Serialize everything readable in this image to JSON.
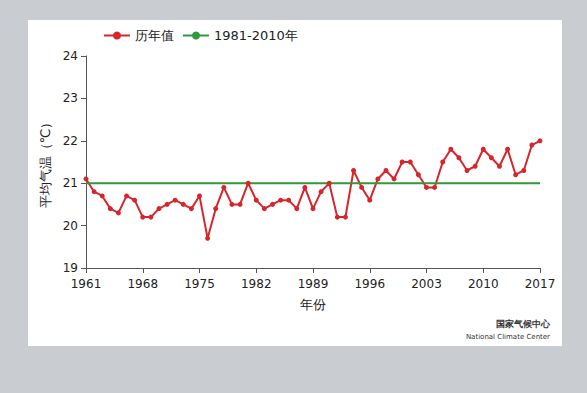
{
  "chart_data": {
    "type": "line",
    "y_label": "平均气温（℃）",
    "x_label": "年份",
    "x": [
      1961,
      1962,
      1963,
      1964,
      1965,
      1966,
      1967,
      1968,
      1969,
      1970,
      1971,
      1972,
      1973,
      1974,
      1975,
      1976,
      1977,
      1978,
      1979,
      1980,
      1981,
      1982,
      1983,
      1984,
      1985,
      1986,
      1987,
      1988,
      1989,
      1990,
      1991,
      1992,
      1993,
      1994,
      1995,
      1996,
      1997,
      1998,
      1999,
      2000,
      2001,
      2002,
      2003,
      2004,
      2005,
      2006,
      2007,
      2008,
      2009,
      2010,
      2011,
      2012,
      2013,
      2014,
      2015,
      2016,
      2017
    ],
    "series": [
      {
        "name": "历年值",
        "color": "#d7262b",
        "marker": "circle",
        "line_style": "solid",
        "values": [
          21.1,
          20.8,
          20.7,
          20.4,
          20.3,
          20.7,
          20.6,
          20.2,
          20.2,
          20.4,
          20.5,
          20.6,
          20.5,
          20.4,
          20.7,
          19.7,
          20.4,
          20.9,
          20.5,
          20.5,
          21.0,
          20.6,
          20.4,
          20.5,
          20.6,
          20.6,
          20.4,
          20.9,
          20.4,
          20.8,
          21.0,
          20.2,
          20.2,
          21.3,
          20.9,
          20.6,
          21.1,
          21.3,
          21.1,
          21.5,
          21.5,
          21.2,
          20.9,
          20.9,
          21.5,
          21.8,
          21.6,
          21.3,
          21.4,
          21.8,
          21.6,
          21.4,
          21.8,
          21.2,
          21.3,
          21.9,
          22.0
        ]
      },
      {
        "name": "1981-2010年",
        "color": "#2e9a3a",
        "marker": "none",
        "line_style": "solid",
        "values": [
          21.0,
          21.0,
          21.0,
          21.0,
          21.0,
          21.0,
          21.0,
          21.0,
          21.0,
          21.0,
          21.0,
          21.0,
          21.0,
          21.0,
          21.0,
          21.0,
          21.0,
          21.0,
          21.0,
          21.0,
          21.0,
          21.0,
          21.0,
          21.0,
          21.0,
          21.0,
          21.0,
          21.0,
          21.0,
          21.0,
          21.0,
          21.0,
          21.0,
          21.0,
          21.0,
          21.0,
          21.0,
          21.0,
          21.0,
          21.0,
          21.0,
          21.0,
          21.0,
          21.0,
          21.0,
          21.0,
          21.0,
          21.0,
          21.0,
          21.0,
          21.0,
          21.0,
          21.0,
          21.0,
          21.0,
          21.0,
          21.0
        ]
      }
    ],
    "xlim": [
      1961,
      2017
    ],
    "xticks": [
      1961,
      1968,
      1975,
      1982,
      1989,
      1996,
      2003,
      2010,
      2017
    ],
    "ylim": [
      19,
      24
    ],
    "yticks": [
      19,
      20,
      21,
      22,
      23,
      24
    ],
    "grid": false,
    "legend": "upper left",
    "annotations": [
      "国家气候中心",
      "National Climate Center"
    ]
  }
}
